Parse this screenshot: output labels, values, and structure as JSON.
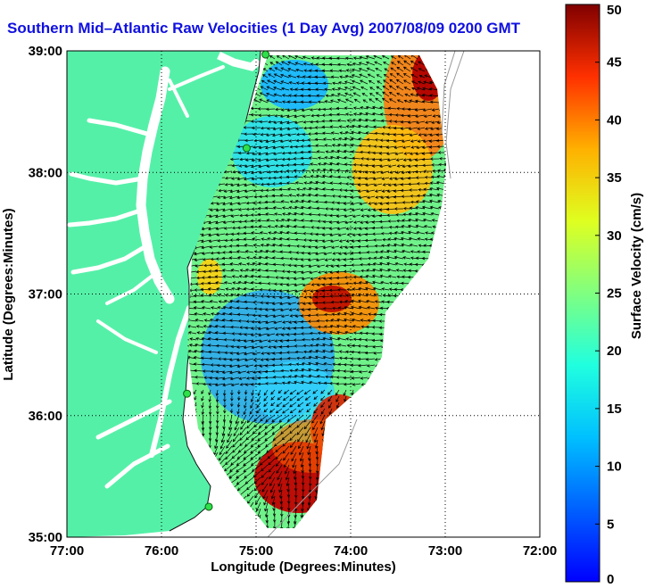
{
  "title": "Southern Mid–Atlantic Raw Velocities (1 Day Avg) 2007/08/09 0200 GMT",
  "map": {
    "xlabel": "Longitude (Degrees:Minutes)",
    "ylabel": "Latitude (Degrees:Minutes)",
    "x_ticks": [
      "77:00",
      "76:00",
      "75:00",
      "74:00",
      "73:00",
      "72:00"
    ],
    "y_ticks": [
      "39:00",
      "38:00",
      "37:00",
      "36:00",
      "35:00"
    ],
    "lon_range": [
      -77,
      -72
    ],
    "lat_range": [
      35,
      39
    ],
    "gridlines": "dotted",
    "land_color": "#55f0a8"
  },
  "colorbar": {
    "label": "Surface Velocity (cm/s)",
    "range": [
      0,
      50
    ],
    "tick_labels": [
      "50",
      "45",
      "40",
      "35",
      "30",
      "25",
      "20",
      "15",
      "10",
      "5",
      "0"
    ],
    "colormap": "jet"
  },
  "stations": [
    {
      "lon": -74.9,
      "lat": 38.97
    },
    {
      "lon": -75.1,
      "lat": 38.2
    },
    {
      "lon": -75.73,
      "lat": 36.18
    },
    {
      "lon": -75.5,
      "lat": 35.25
    }
  ]
}
